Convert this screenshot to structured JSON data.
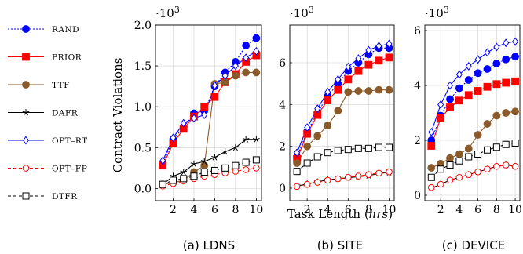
{
  "figure": {
    "ylabel": "Contract Violations",
    "xlabel_prefix": "Task Length (",
    "xlabel_unit": "hrs",
    "xlabel_suffix": ")"
  },
  "legend": [
    {
      "key": "RAND",
      "label": "RAND",
      "color": "#0000ff",
      "dash": "2,2",
      "marker": "circle-filled"
    },
    {
      "key": "PRIOR",
      "label": "PRIOR",
      "color": "#ff0000",
      "dash": "",
      "marker": "square-filled"
    },
    {
      "key": "TTF",
      "label": "TTF",
      "color": "#8b5a2b",
      "dash": "",
      "marker": "circle-filled"
    },
    {
      "key": "DAFR",
      "label": "DAFR",
      "color": "#000000",
      "dash": "",
      "marker": "star"
    },
    {
      "key": "OPT-RT",
      "label": "OPT–RT",
      "color": "#0000ff",
      "dash": "",
      "marker": "diamond-open"
    },
    {
      "key": "OPT-FP",
      "label": "OPT–FP",
      "color": "#ff0000",
      "dash": "4,3",
      "marker": "circle-open"
    },
    {
      "key": "DTFR",
      "label": "DTFR",
      "color": "#000000",
      "dash": "4,3",
      "marker": "square-open"
    }
  ],
  "chart_data": [
    {
      "type": "line",
      "caption": "(a) LDNS",
      "scale_label": "·10",
      "scale_exp": "3",
      "x": [
        1,
        2,
        3,
        4,
        5,
        6,
        7,
        8,
        9,
        10
      ],
      "xlim": [
        0.3,
        10.5
      ],
      "ylim": [
        -0.15,
        2.0
      ],
      "xticks": [
        2,
        4,
        6,
        8,
        10
      ],
      "yticks": [
        0,
        0.5,
        1,
        1.5,
        2
      ],
      "ytick_labels": [
        "0.0",
        "0.5",
        "1.0",
        "1.5",
        "2.0"
      ],
      "grid": true,
      "series": [
        {
          "name": "RAND",
          "values": [
            0.3,
            0.6,
            0.75,
            0.92,
            0.95,
            1.25,
            1.42,
            1.55,
            1.75,
            1.84
          ]
        },
        {
          "name": "PRIOR",
          "values": [
            0.28,
            0.55,
            0.73,
            0.88,
            1.0,
            1.12,
            1.3,
            1.4,
            1.55,
            1.63
          ]
        },
        {
          "name": "TTF",
          "values": [
            0.05,
            0.07,
            0.1,
            0.2,
            0.28,
            1.28,
            1.3,
            1.38,
            1.42,
            1.42
          ]
        },
        {
          "name": "DAFR",
          "values": [
            0.05,
            0.15,
            0.2,
            0.3,
            0.33,
            0.38,
            0.45,
            0.5,
            0.6,
            0.6
          ]
        },
        {
          "name": "OPT-RT",
          "values": [
            0.34,
            0.62,
            0.8,
            0.86,
            0.9,
            1.26,
            1.38,
            1.5,
            1.6,
            1.68
          ]
        },
        {
          "name": "OPT-FP",
          "values": [
            0.03,
            0.06,
            0.09,
            0.12,
            0.15,
            0.17,
            0.19,
            0.21,
            0.23,
            0.25
          ]
        },
        {
          "name": "DTFR",
          "values": [
            0.05,
            0.1,
            0.12,
            0.15,
            0.2,
            0.22,
            0.25,
            0.28,
            0.32,
            0.35
          ]
        }
      ]
    },
    {
      "type": "line",
      "caption": "(b) SITE",
      "scale_label": "·10",
      "scale_exp": "3",
      "x": [
        1,
        2,
        3,
        4,
        5,
        6,
        7,
        8,
        9,
        10
      ],
      "xlim": [
        0.3,
        10.5
      ],
      "ylim": [
        -0.6,
        7.8
      ],
      "xticks": [
        2,
        4,
        6,
        8,
        10
      ],
      "yticks": [
        0,
        2,
        4,
        6
      ],
      "ytick_labels": [
        "0",
        "2",
        "4",
        "6"
      ],
      "grid": true,
      "series": [
        {
          "name": "RAND",
          "values": [
            1.5,
            2.7,
            3.6,
            4.4,
            5.0,
            5.6,
            6.0,
            6.4,
            6.7,
            6.7
          ]
        },
        {
          "name": "PRIOR",
          "values": [
            1.4,
            2.6,
            3.5,
            4.2,
            4.7,
            5.2,
            5.6,
            5.9,
            6.1,
            6.25
          ]
        },
        {
          "name": "TTF",
          "values": [
            1.2,
            2.0,
            2.5,
            3.0,
            3.7,
            4.6,
            4.65,
            4.65,
            4.7,
            4.7
          ]
        },
        {
          "name": "DAFR",
          "values": [
            0.1,
            0.2,
            0.3,
            0.4,
            0.45,
            0.5,
            0.55,
            0.6,
            0.7,
            0.75
          ]
        },
        {
          "name": "OPT-RT",
          "values": [
            1.7,
            2.9,
            3.8,
            4.6,
            5.2,
            5.8,
            6.2,
            6.6,
            6.8,
            6.9
          ]
        },
        {
          "name": "OPT-FP",
          "values": [
            0.08,
            0.18,
            0.28,
            0.38,
            0.45,
            0.52,
            0.58,
            0.65,
            0.72,
            0.78
          ]
        },
        {
          "name": "DTFR",
          "values": [
            0.8,
            1.2,
            1.5,
            1.7,
            1.8,
            1.85,
            1.9,
            1.9,
            1.95,
            1.95
          ]
        }
      ]
    },
    {
      "type": "line",
      "caption": "(c) DEVICE",
      "scale_label": "·10",
      "scale_exp": "3",
      "x": [
        1,
        2,
        3,
        4,
        5,
        6,
        7,
        8,
        9,
        10
      ],
      "xlim": [
        0.3,
        10.5
      ],
      "ylim": [
        -0.2,
        6.2
      ],
      "xticks": [
        2,
        4,
        6,
        8,
        10
      ],
      "yticks": [
        0,
        2,
        4,
        6
      ],
      "ytick_labels": [
        "0",
        "2",
        "4",
        "6"
      ],
      "grid": true,
      "series": [
        {
          "name": "RAND",
          "values": [
            2.0,
            2.9,
            3.5,
            3.9,
            4.2,
            4.45,
            4.6,
            4.8,
            4.95,
            5.05
          ]
        },
        {
          "name": "PRIOR",
          "values": [
            1.8,
            2.8,
            3.2,
            3.45,
            3.65,
            3.8,
            3.95,
            4.05,
            4.1,
            4.15
          ]
        },
        {
          "name": "TTF",
          "values": [
            1.0,
            1.15,
            1.35,
            1.5,
            1.7,
            2.2,
            2.6,
            2.9,
            3.0,
            3.05
          ]
        },
        {
          "name": "DAFR",
          "values": [
            0.25,
            0.4,
            0.55,
            0.65,
            0.75,
            0.85,
            0.95,
            1.05,
            1.1,
            1.05
          ]
        },
        {
          "name": "OPT-RT",
          "values": [
            2.3,
            3.3,
            4.0,
            4.4,
            4.7,
            4.95,
            5.2,
            5.4,
            5.55,
            5.6
          ]
        },
        {
          "name": "OPT-FP",
          "values": [
            0.28,
            0.4,
            0.55,
            0.65,
            0.75,
            0.85,
            0.95,
            1.05,
            1.1,
            1.05
          ]
        },
        {
          "name": "DTFR",
          "values": [
            0.65,
            0.95,
            1.1,
            1.25,
            1.4,
            1.5,
            1.65,
            1.75,
            1.85,
            1.9
          ]
        }
      ]
    }
  ]
}
